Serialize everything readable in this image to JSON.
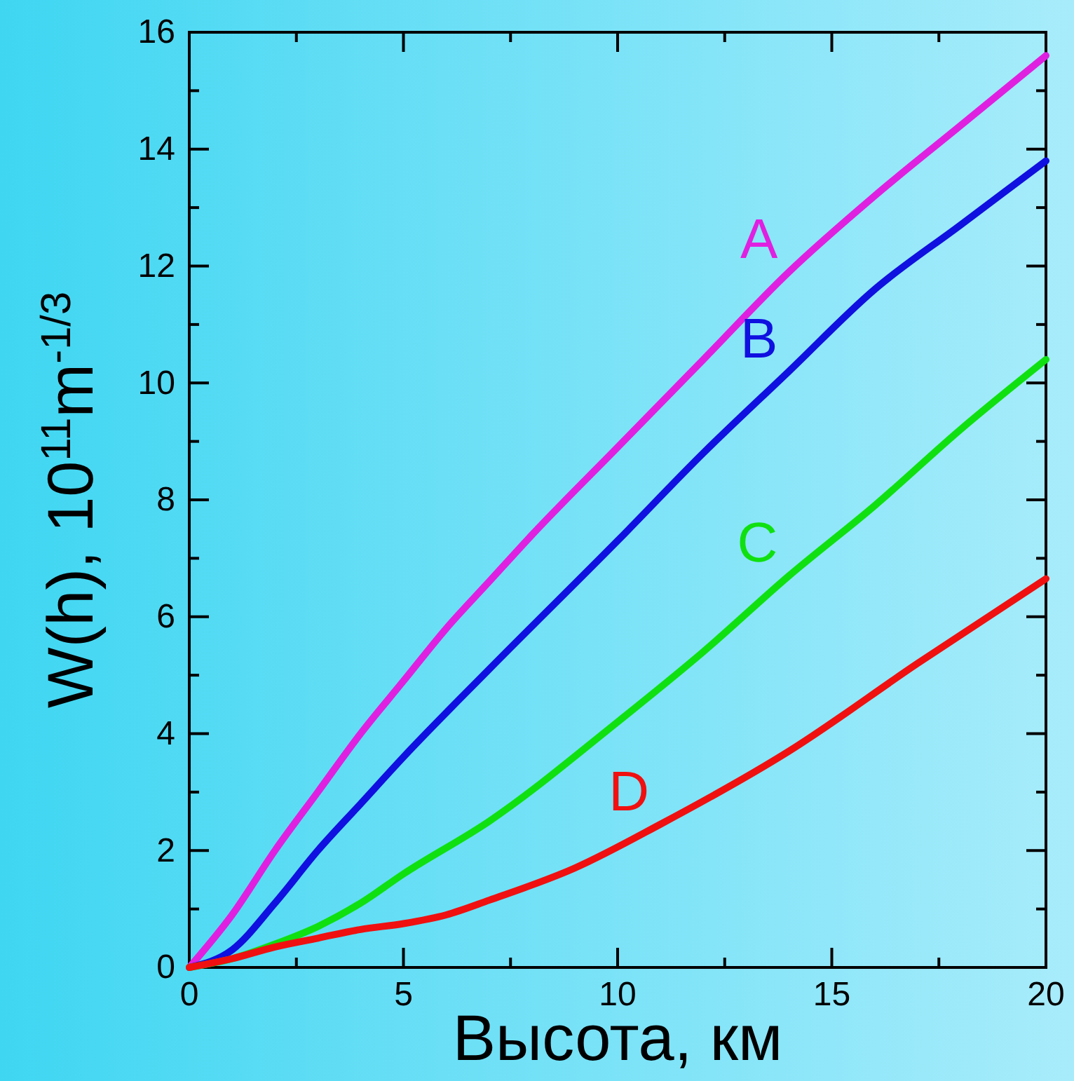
{
  "chart_data": {
    "type": "line",
    "xlabel": "Высота, км",
    "ylabel": "W(h), 10$^{11}$m$^{-1/3}$",
    "xlim": [
      0,
      20
    ],
    "ylim": [
      0,
      16
    ],
    "xticks": [
      0,
      5,
      10,
      15,
      20
    ],
    "yticks": [
      0,
      2,
      4,
      6,
      8,
      10,
      12,
      14,
      16
    ],
    "grid": false,
    "legend": false,
    "line_style": "solid",
    "marker": "none",
    "series": [
      {
        "name": "A",
        "color": "#e020e0",
        "x": [
          0,
          1,
          2,
          3,
          4,
          5,
          6,
          7,
          8,
          10,
          12,
          14,
          16,
          18,
          20
        ],
        "values": [
          0,
          0.9,
          2.0,
          3.0,
          4.0,
          4.9,
          5.8,
          6.6,
          7.4,
          8.9,
          10.4,
          11.9,
          13.2,
          14.4,
          15.6
        ]
      },
      {
        "name": "B",
        "color": "#1010e0",
        "x": [
          0,
          1,
          2,
          3,
          4,
          5,
          7,
          10,
          12,
          14,
          16,
          18,
          20
        ],
        "values": [
          0,
          0.3,
          1.1,
          2.0,
          2.8,
          3.6,
          5.1,
          7.3,
          8.8,
          10.2,
          11.6,
          12.7,
          13.8
        ]
      },
      {
        "name": "C",
        "color": "#10e010",
        "x": [
          0,
          1,
          2,
          3,
          4,
          5,
          7,
          10,
          12,
          14,
          16,
          18,
          20
        ],
        "values": [
          0,
          0.15,
          0.4,
          0.7,
          1.1,
          1.6,
          2.5,
          4.2,
          5.4,
          6.7,
          7.9,
          9.2,
          10.4
        ]
      },
      {
        "name": "D",
        "color": "#f01010",
        "x": [
          0,
          1,
          2,
          3,
          4,
          5,
          6,
          7,
          9,
          11,
          14,
          17,
          20
        ],
        "values": [
          0,
          0.15,
          0.35,
          0.5,
          0.65,
          0.75,
          0.9,
          1.15,
          1.7,
          2.45,
          3.7,
          5.2,
          6.65
        ]
      }
    ]
  }
}
